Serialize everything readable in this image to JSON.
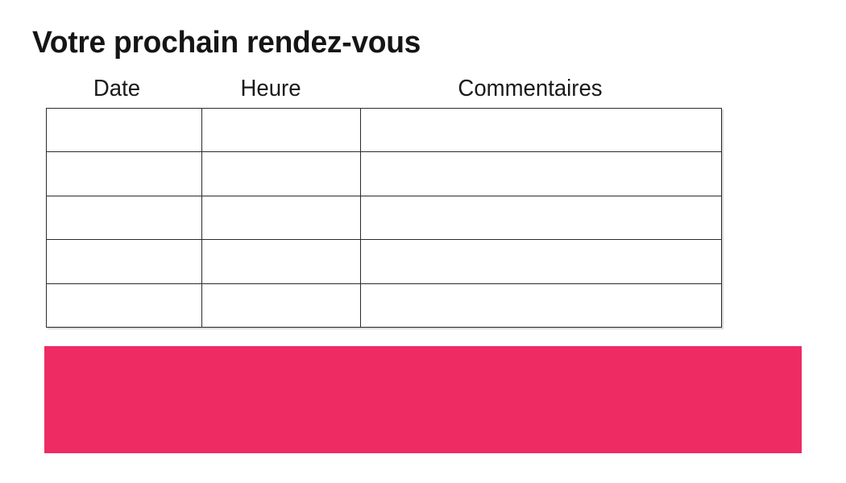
{
  "page": {
    "background": "#ffffff",
    "text_color": "#1a1a1a"
  },
  "title": "Votre prochain rendez-vous",
  "table": {
    "headers": [
      "Date",
      "Heure",
      "Commentaires"
    ],
    "row_count": 5,
    "rows": [
      [
        "",
        "",
        ""
      ],
      [
        "",
        "",
        ""
      ],
      [
        "",
        "",
        ""
      ],
      [
        "",
        "",
        ""
      ],
      [
        "",
        "",
        ""
      ]
    ],
    "border_color": "#2b2b2b"
  },
  "banner": {
    "color": "#ee2b63",
    "text": ""
  }
}
